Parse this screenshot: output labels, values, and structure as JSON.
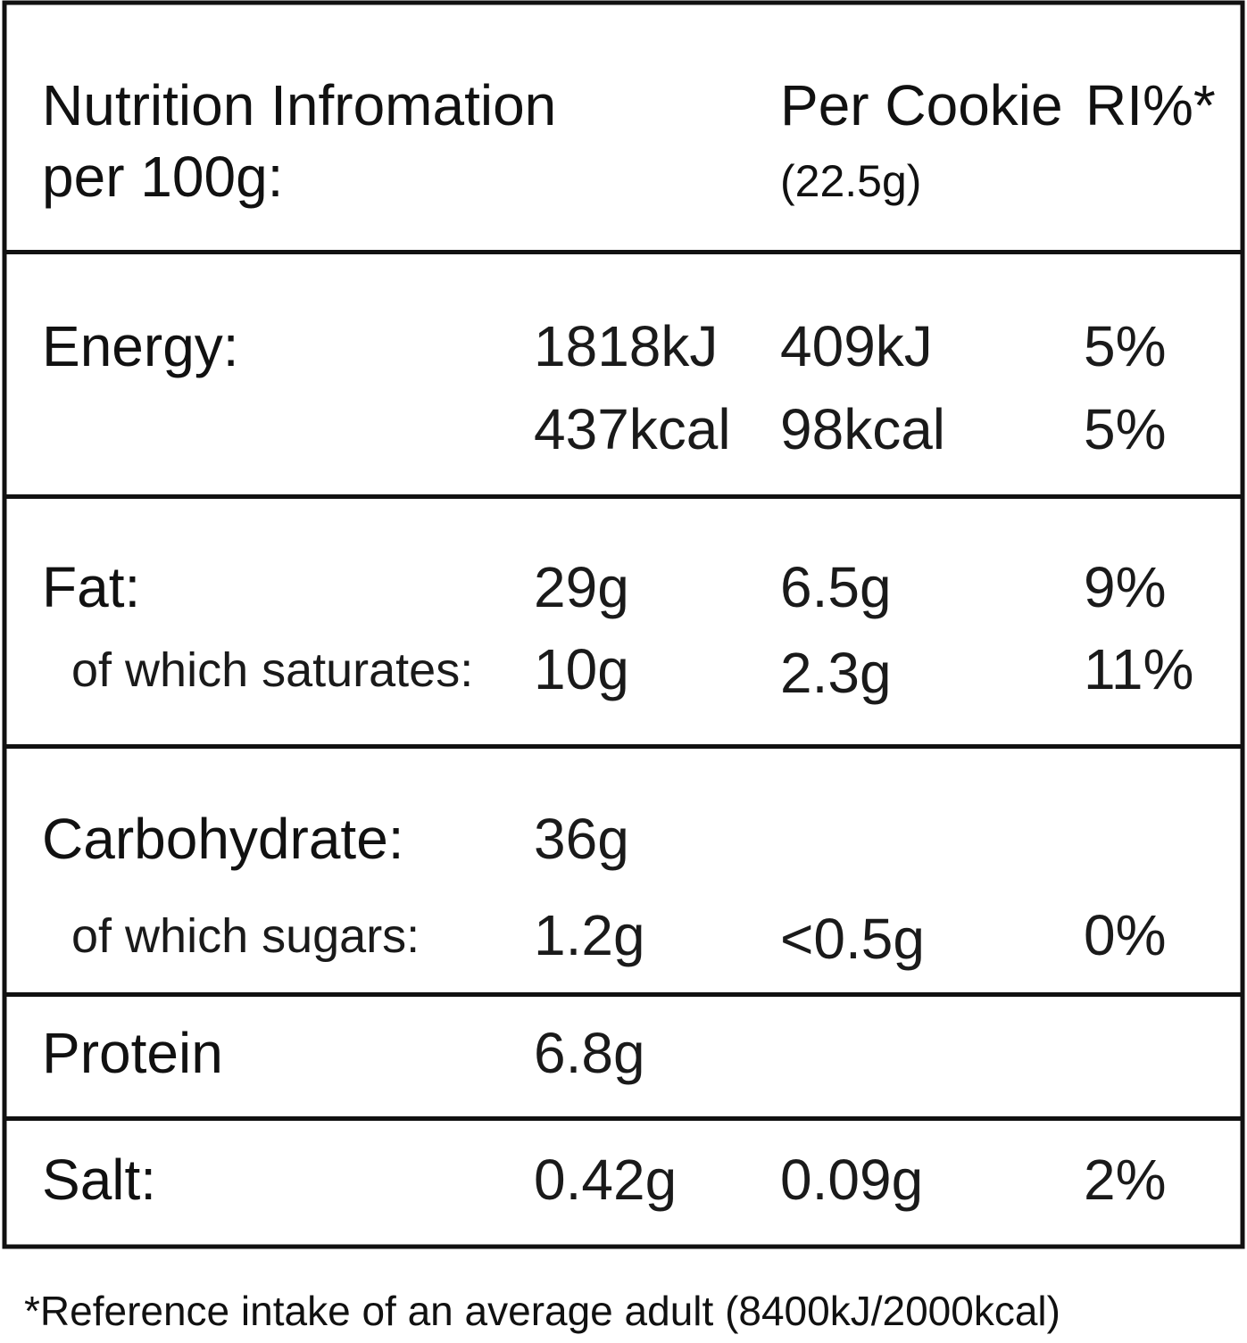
{
  "header": {
    "title": "Nutrition Infromation",
    "title_line2": "per 100g:",
    "per_cookie": "Per Cookie",
    "per_cookie_weight": "(22.5g)",
    "ri": "RI%*"
  },
  "table": {
    "rows": [
      {
        "label": "Energy:",
        "per_100g": "1818kJ",
        "per_cookie": "409kJ",
        "ri": "5%"
      },
      {
        "per_100g": "437kcal",
        "per_cookie": "98kcal",
        "ri": "5%"
      },
      {
        "label": "Fat:",
        "per_100g": "29g",
        "per_cookie": "6.5g",
        "ri": "9%"
      },
      {
        "label": "of which saturates:",
        "per_100g": "10g",
        "per_cookie": "2.3g",
        "ri": "11%"
      },
      {
        "label": "Carbohydrate:",
        "per_100g": "36g"
      },
      {
        "label": "of which sugars:",
        "per_100g": "1.2g",
        "per_cookie": "<0.5g",
        "ri": "0%"
      },
      {
        "label": "Protein",
        "per_100g": "6.8g"
      },
      {
        "label": "Salt:",
        "per_100g": "0.42g",
        "per_cookie": "0.09g",
        "ri": "2%"
      }
    ]
  },
  "footnote": "*Reference intake of an average adult (8400kJ/2000kcal)"
}
